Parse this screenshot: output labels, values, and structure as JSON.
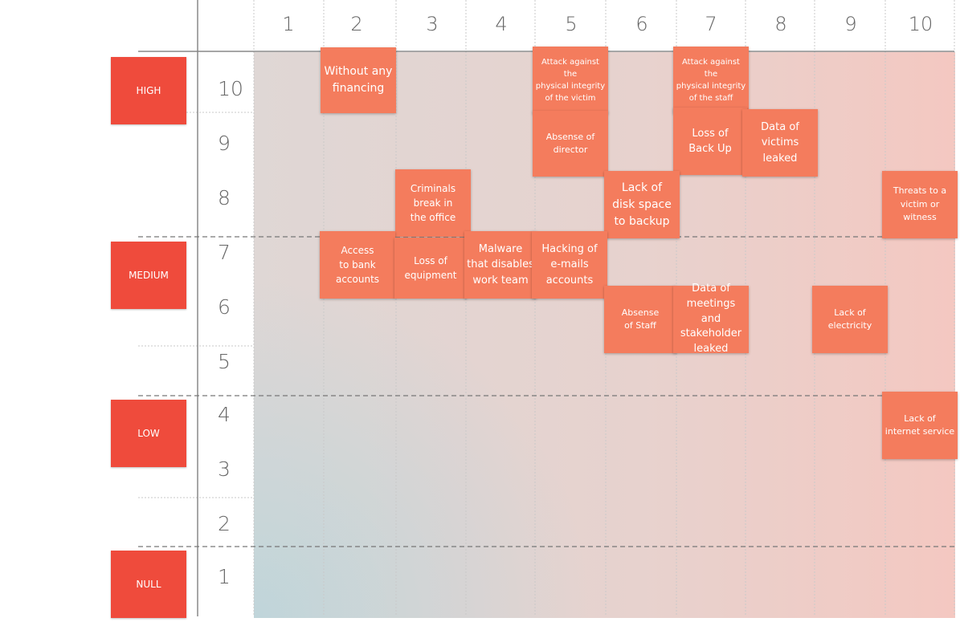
{
  "columns": [
    "1",
    "2",
    "3",
    "4",
    "5",
    "6",
    "7",
    "8",
    "9",
    "10"
  ],
  "rows": [
    "10",
    "9",
    "8",
    "7",
    "6",
    "5",
    "4",
    "3",
    "2",
    "1"
  ],
  "levels": [
    "HIGH",
    "MEDIUM",
    "LOW",
    "NULL"
  ],
  "risks": [
    "Without any\nfinancing",
    "Attack against the\nphysical integrity\nof the victim",
    "Attack against the\nphysical integrity\nof the staff",
    "Absense of\ndirector",
    "Loss of\nBack Up",
    "Data of\nvictims leaked",
    "Criminals\nbreak in\nthe office",
    "Lack of\ndisk space\nto backup",
    "Threats to a\nvictim or\nwitness",
    "Access\nto bank\naccounts",
    "Loss of\nequipment",
    "Malware\nthat disables\nwork team",
    "Hacking of\ne-mails\naccounts",
    "Absense\nof Staff",
    "Data of\nmeetings and\nstakeholder\nleaked",
    "Lack of\nelectricity",
    "Lack of\ninternet service"
  ],
  "colors": {
    "level_box": "#ef4b3c",
    "note": "#f47c5d",
    "axis": "#666666"
  }
}
